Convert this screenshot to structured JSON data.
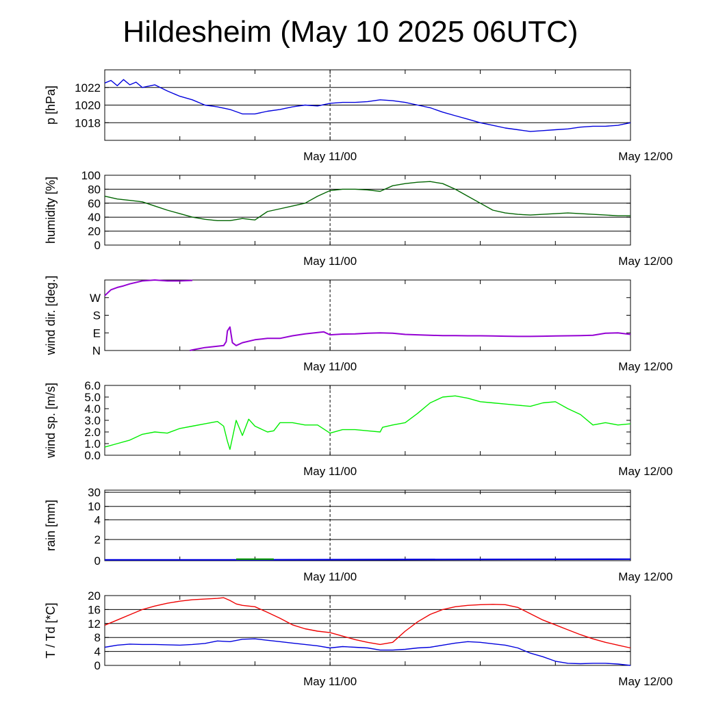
{
  "title": "Hildesheim (May 10 2025 06UTC)",
  "colors": {
    "pressure": "#0000dd",
    "humidity": "#006400",
    "wind_dir": "#9400d3",
    "wind_speed": "#00ee00",
    "rain": "#0000dd",
    "rain_green": "#009900",
    "temperature": "#ee0000",
    "dewpoint": "#0000dd"
  },
  "chart_data": [
    {
      "id": "pressure",
      "type": "line",
      "title": "",
      "xlabel": "",
      "ylabel": "p [hPa]",
      "ylim": [
        1016.0,
        1024.0
      ],
      "yticks": [
        {
          "v": 1018,
          "label": "1018"
        },
        {
          "v": 1020,
          "label": "1020"
        },
        {
          "v": 1022,
          "label": "1022"
        }
      ],
      "xlim": [
        0,
        42
      ],
      "xticks": [
        {
          "v": 18,
          "label": "May 11/00"
        },
        {
          "v": 42,
          "label": "May 12/00"
        }
      ],
      "series": [
        {
          "color_key": "pressure",
          "x": [
            0,
            0.5,
            1,
            1.5,
            2,
            2.5,
            3,
            4,
            5,
            6,
            7,
            8,
            9,
            10,
            11,
            12,
            13,
            14,
            15,
            16,
            17,
            18,
            19,
            20,
            21,
            22,
            23,
            24,
            25,
            26,
            27,
            28,
            29,
            30,
            31,
            32,
            33,
            34,
            35,
            36,
            37,
            38,
            39,
            40,
            41,
            42
          ],
          "y": [
            1022.5,
            1022.8,
            1022.2,
            1022.9,
            1022.3,
            1022.6,
            1022.0,
            1022.3,
            1021.6,
            1021.0,
            1020.6,
            1020.0,
            1019.8,
            1019.5,
            1019.0,
            1019.0,
            1019.3,
            1019.5,
            1019.8,
            1020.0,
            1019.9,
            1020.2,
            1020.3,
            1020.3,
            1020.4,
            1020.6,
            1020.5,
            1020.3,
            1020.0,
            1019.7,
            1019.2,
            1018.8,
            1018.4,
            1018.0,
            1017.7,
            1017.4,
            1017.2,
            1017.0,
            1017.1,
            1017.2,
            1017.3,
            1017.5,
            1017.6,
            1017.6,
            1017.7,
            1018.0
          ]
        }
      ]
    },
    {
      "id": "humidity",
      "type": "line",
      "title": "",
      "xlabel": "",
      "ylabel": "humidity [%]",
      "ylim": [
        0,
        100
      ],
      "yticks": [
        {
          "v": 0,
          "label": "0"
        },
        {
          "v": 20,
          "label": "20"
        },
        {
          "v": 40,
          "label": "40"
        },
        {
          "v": 60,
          "label": "60"
        },
        {
          "v": 80,
          "label": "80"
        },
        {
          "v": 100,
          "label": "100"
        }
      ],
      "xlim": [
        0,
        42
      ],
      "xticks": [
        {
          "v": 18,
          "label": "May 11/00"
        },
        {
          "v": 42,
          "label": "May 12/00"
        }
      ],
      "series": [
        {
          "color_key": "humidity",
          "x": [
            0,
            1,
            2,
            3,
            4,
            5,
            6,
            7,
            8,
            9,
            10,
            11,
            12,
            13,
            14,
            15,
            16,
            17,
            18,
            19,
            20,
            21,
            22,
            23,
            24,
            25,
            26,
            27,
            28,
            29,
            30,
            31,
            32,
            33,
            34,
            35,
            36,
            37,
            38,
            39,
            40,
            41,
            42
          ],
          "y": [
            70,
            66,
            64,
            62,
            56,
            50,
            45,
            40,
            37,
            35,
            35,
            38,
            36,
            48,
            52,
            56,
            60,
            70,
            78,
            80,
            80,
            79,
            77,
            85,
            88,
            90,
            91,
            88,
            80,
            70,
            60,
            50,
            46,
            44,
            43,
            44,
            45,
            46,
            45,
            44,
            43,
            42,
            42
          ],
          "note_points": []
        }
      ]
    }
  ],
  "panels": {
    "date_labels": [
      "May 11/00",
      "May 12/00"
    ],
    "wind_dir_ylabel": "wind dir. [deg.]",
    "wind_dir_ticks": [
      "N",
      "E",
      "S",
      "W"
    ],
    "wind_speed_ylabel": "wind sp. [m/s]",
    "wind_speed_ticks": [
      "0.0",
      "1.0",
      "2.0",
      "3.0",
      "4.0",
      "5.0",
      "6.0"
    ],
    "rain_ylabel": "rain [mm]",
    "rain_ticks": [
      "0",
      "2",
      "4",
      "10",
      "30"
    ],
    "temp_ylabel": "T / Td [*C]",
    "temp_ticks": [
      "0",
      "4",
      "8",
      "12",
      "16",
      "20"
    ]
  },
  "extra_chart_data": [
    {
      "id": "wind_dir",
      "type": "line",
      "ylabel": "wind dir. [deg.]",
      "ylim": [
        0,
        360
      ],
      "ytick_values": [
        0,
        90,
        180,
        270
      ],
      "ytick_labels": [
        "N",
        "E",
        "S",
        "W"
      ],
      "xlim": [
        0,
        42
      ],
      "segments": [
        {
          "x": [
            0,
            0.5,
            1,
            1.5,
            2,
            3,
            4,
            5,
            6,
            7
          ],
          "y": [
            280,
            310,
            322,
            330,
            340,
            355,
            360,
            355,
            355,
            358
          ]
        },
        {
          "x": [
            6.8,
            7,
            8,
            9,
            9.5,
            9.7,
            9.8,
            10.0,
            10.2,
            10.5,
            11,
            12,
            13,
            14,
            15,
            16,
            17,
            17.5,
            18,
            19,
            20,
            21,
            22,
            23,
            24,
            25,
            26,
            27,
            28,
            29,
            30,
            31,
            32,
            33,
            34,
            35,
            36,
            37,
            38,
            39,
            40,
            41,
            42
          ],
          "y": [
            0,
            3,
            15,
            22,
            25,
            45,
            100,
            120,
            40,
            25,
            40,
            55,
            62,
            62,
            75,
            85,
            92,
            95,
            80,
            84,
            85,
            88,
            90,
            88,
            82,
            80,
            78,
            76,
            76,
            75,
            75,
            74,
            73,
            72,
            72,
            73,
            74,
            75,
            76,
            78,
            88,
            90,
            82
          ]
        }
      ]
    },
    {
      "id": "wind_speed",
      "type": "line",
      "ylabel": "wind sp. [m/s]",
      "ylim": [
        0,
        6
      ],
      "ytick_values": [
        0,
        1,
        2,
        3,
        4,
        5,
        6
      ],
      "ytick_labels": [
        "0.0",
        "1.0",
        "2.0",
        "3.0",
        "4.0",
        "5.0",
        "6.0"
      ],
      "xlim": [
        0,
        42
      ],
      "x": [
        0,
        1,
        2,
        3,
        4,
        5,
        6,
        7,
        8,
        9,
        9.5,
        9.8,
        10,
        10.5,
        11,
        11.5,
        12,
        13,
        13.5,
        14,
        15,
        16,
        17,
        18,
        19,
        20,
        21,
        22,
        22.2,
        23,
        24,
        25,
        26,
        27,
        28,
        29,
        30,
        31,
        32,
        33,
        34,
        35,
        36,
        37,
        38,
        39,
        40,
        41,
        42
      ],
      "y": [
        0.7,
        1.0,
        1.3,
        1.8,
        2.0,
        1.9,
        2.3,
        2.5,
        2.7,
        2.9,
        2.5,
        1.2,
        0.5,
        3.0,
        1.7,
        3.1,
        2.5,
        2.0,
        2.1,
        2.8,
        2.8,
        2.6,
        2.6,
        1.9,
        2.2,
        2.2,
        2.1,
        2.0,
        2.4,
        2.6,
        2.8,
        3.6,
        4.5,
        5.0,
        5.1,
        4.9,
        4.6,
        4.5,
        4.4,
        4.3,
        4.2,
        4.5,
        4.6,
        4.0,
        3.5,
        2.6,
        2.8,
        2.6,
        2.7
      ]
    },
    {
      "id": "rain",
      "type": "area",
      "ylabel": "rain [mm]",
      "ytick_values": [
        0,
        2,
        4,
        10,
        30
      ],
      "ytick_labels": [
        "0",
        "2",
        "4",
        "10",
        "30"
      ],
      "ylim_display": [
        0,
        30
      ],
      "xlim": [
        0,
        42
      ],
      "series": [
        {
          "color_key": "rain",
          "x": [
            0,
            10,
            42
          ],
          "y": [
            0,
            0,
            0.05
          ]
        },
        {
          "color_key": "rain_green",
          "x": [
            10.5,
            13.5
          ],
          "y": [
            0.05,
            0.05
          ]
        }
      ]
    },
    {
      "id": "temperature",
      "type": "line",
      "ylabel": "T / Td [*C]",
      "ylim": [
        0,
        20
      ],
      "ytick_values": [
        0,
        4,
        8,
        12,
        16,
        20
      ],
      "ytick_labels": [
        "0",
        "4",
        "8",
        "12",
        "16",
        "20"
      ],
      "xlim": [
        0,
        42
      ],
      "series": [
        {
          "color_key": "temperature",
          "x": [
            0,
            1,
            2,
            3,
            4,
            5,
            6,
            7,
            8,
            9,
            9.5,
            10,
            10.5,
            11,
            12,
            13,
            14,
            15,
            16,
            17,
            18,
            19,
            20,
            21,
            22,
            23,
            24,
            25,
            26,
            27,
            28,
            29,
            30,
            31,
            32,
            33,
            34,
            35,
            36,
            37,
            38,
            39,
            40,
            41,
            42
          ],
          "y": [
            11.5,
            13,
            14.5,
            16,
            17,
            17.8,
            18.4,
            18.8,
            19.0,
            19.2,
            19.4,
            18.6,
            17.6,
            17.2,
            16.8,
            15.2,
            13.5,
            11.6,
            10.5,
            9.8,
            9.4,
            8.4,
            7.4,
            6.6,
            6.0,
            6.6,
            9.8,
            12.5,
            14.6,
            16.0,
            16.8,
            17.2,
            17.4,
            17.5,
            17.4,
            16.6,
            14.8,
            13.0,
            11.6,
            10.2,
            8.8,
            7.6,
            6.6,
            5.8,
            5.0
          ]
        },
        {
          "color_key": "dewpoint",
          "x": [
            0,
            1,
            2,
            3,
            4,
            5,
            6,
            7,
            8,
            9,
            10,
            11,
            12,
            13,
            14,
            15,
            16,
            17,
            18,
            19,
            20,
            21,
            22,
            23,
            24,
            25,
            26,
            27,
            28,
            29,
            30,
            31,
            32,
            33,
            34,
            35,
            36,
            37,
            38,
            39,
            40,
            41,
            42
          ],
          "y": [
            5.2,
            5.8,
            6.1,
            6.0,
            6.0,
            5.9,
            5.8,
            6.0,
            6.3,
            7.0,
            6.8,
            7.5,
            7.6,
            7.2,
            6.8,
            6.4,
            6.0,
            5.6,
            5.0,
            5.4,
            5.2,
            5.0,
            4.4,
            4.4,
            4.6,
            5.0,
            5.2,
            5.8,
            6.4,
            6.8,
            6.6,
            6.2,
            5.8,
            5.0,
            3.5,
            2.5,
            1.2,
            0.6,
            0.5,
            0.6,
            0.6,
            0.4,
            0.0
          ]
        }
      ]
    }
  ]
}
